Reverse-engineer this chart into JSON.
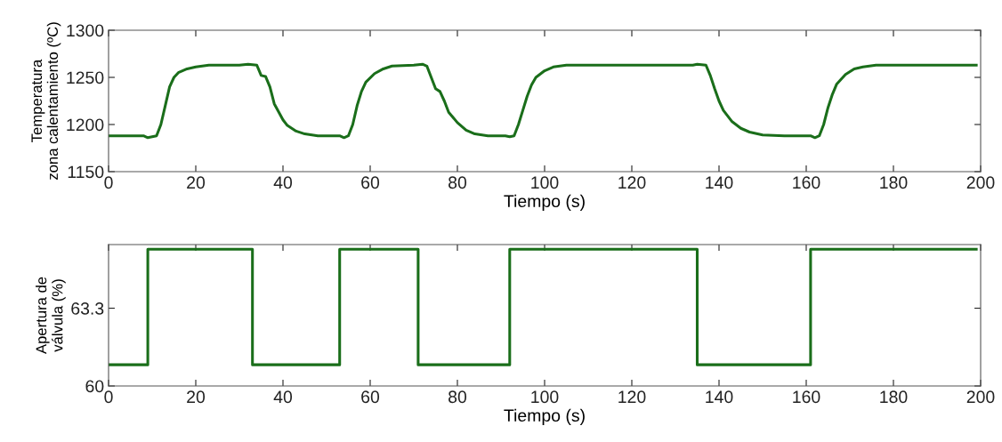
{
  "chart_data": [
    {
      "type": "line",
      "xlabel": "Tiempo (s)",
      "ylabel": "Temperatura\nzona calentamiento (ºC)",
      "xlim": [
        0,
        200
      ],
      "ylim": [
        1150,
        1300
      ],
      "xticks": [
        0,
        20,
        40,
        60,
        80,
        100,
        120,
        140,
        160,
        180,
        200
      ],
      "yticks": [
        1150,
        1200,
        1250,
        1300
      ],
      "grid": false,
      "line_style": "solid",
      "marker": "none",
      "series": [
        {
          "color": "#1a6e1a",
          "x": [
            0,
            8,
            9,
            11,
            12,
            13,
            14,
            15,
            16,
            18,
            20,
            23,
            30,
            32,
            34,
            35,
            36,
            37,
            38,
            40,
            41,
            43,
            45,
            48,
            53,
            54,
            55,
            56,
            57,
            58,
            59,
            61,
            63,
            65,
            70,
            72,
            73,
            74,
            75,
            76,
            77,
            78,
            80,
            82,
            84,
            87,
            91,
            92,
            93,
            94,
            95,
            96,
            97,
            98,
            100,
            102,
            105,
            134,
            135,
            137,
            138,
            139,
            140,
            141,
            143,
            145,
            147,
            150,
            155,
            161,
            162,
            163,
            164,
            165,
            166,
            167,
            169,
            171,
            173,
            176,
            199
          ],
          "values": [
            1188,
            1188,
            1186,
            1188,
            1200,
            1220,
            1240,
            1250,
            1255,
            1259,
            1261,
            1263,
            1263,
            1264,
            1263,
            1252,
            1251,
            1240,
            1222,
            1205,
            1199,
            1193,
            1190,
            1188,
            1188,
            1186,
            1188,
            1200,
            1220,
            1235,
            1245,
            1254,
            1259,
            1262,
            1263,
            1264,
            1262,
            1250,
            1238,
            1235,
            1225,
            1213,
            1202,
            1194,
            1190,
            1188,
            1188,
            1187,
            1188,
            1200,
            1215,
            1230,
            1242,
            1250,
            1257,
            1261,
            1263,
            1263,
            1264,
            1263,
            1252,
            1238,
            1225,
            1215,
            1203,
            1196,
            1192,
            1189,
            1188,
            1188,
            1186,
            1188,
            1200,
            1218,
            1232,
            1243,
            1253,
            1259,
            1261,
            1263,
            1263
          ]
        }
      ]
    },
    {
      "type": "step",
      "xlabel": "Tiempo (s)",
      "ylabel": "Apertura de\nválvula (%)",
      "xlim": [
        0,
        200
      ],
      "ylim": [
        60,
        66
      ],
      "xticks": [
        0,
        20,
        40,
        60,
        80,
        100,
        120,
        140,
        160,
        180,
        200
      ],
      "yticks": [
        60,
        63.3
      ],
      "grid": false,
      "line_style": "solid",
      "marker": "none",
      "series": [
        {
          "color": "#1a6e1a",
          "x": [
            0,
            9,
            33,
            53,
            71,
            92,
            135,
            161,
            199
          ],
          "values": [
            60.9,
            65.8,
            60.9,
            65.8,
            60.9,
            65.8,
            60.9,
            65.8,
            65.8
          ]
        }
      ]
    }
  ]
}
